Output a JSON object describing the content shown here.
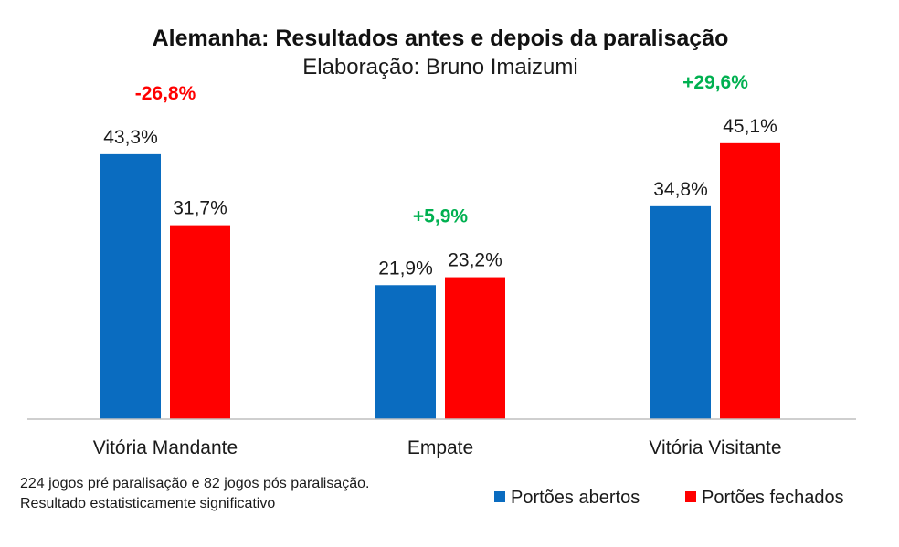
{
  "chart_data": {
    "type": "bar",
    "title": "Alemanha:  Resultados antes e depois da paralisação",
    "subtitle": "Elaboração: Bruno Imaizumi",
    "categories": [
      "Vitória Mandante",
      "Empate",
      "Vitória Visitante"
    ],
    "series": [
      {
        "name": "Portões abertos",
        "color": "#0a6cc0",
        "values": [
          43.3,
          21.9,
          34.8
        ],
        "labels": [
          "43,3%",
          "21,9%",
          "34,8%"
        ]
      },
      {
        "name": "Portões fechados",
        "color": "#ff0000",
        "values": [
          31.7,
          23.2,
          45.1
        ],
        "labels": [
          "31,7%",
          "23,2%",
          "45,1%"
        ]
      }
    ],
    "changes": [
      {
        "text": "-26,8%",
        "color": "#ff0000"
      },
      {
        "text": "+5,9%",
        "color": "#00b050"
      },
      {
        "text": "+29,6%",
        "color": "#00b050"
      }
    ],
    "ylim": [
      0,
      50
    ],
    "grid": false,
    "legend_position": "bottom-right",
    "notes": [
      "224 jogos pré paralisação e 82 jogos pós paralisação.",
      "Resultado estatisticamente significativo"
    ]
  }
}
